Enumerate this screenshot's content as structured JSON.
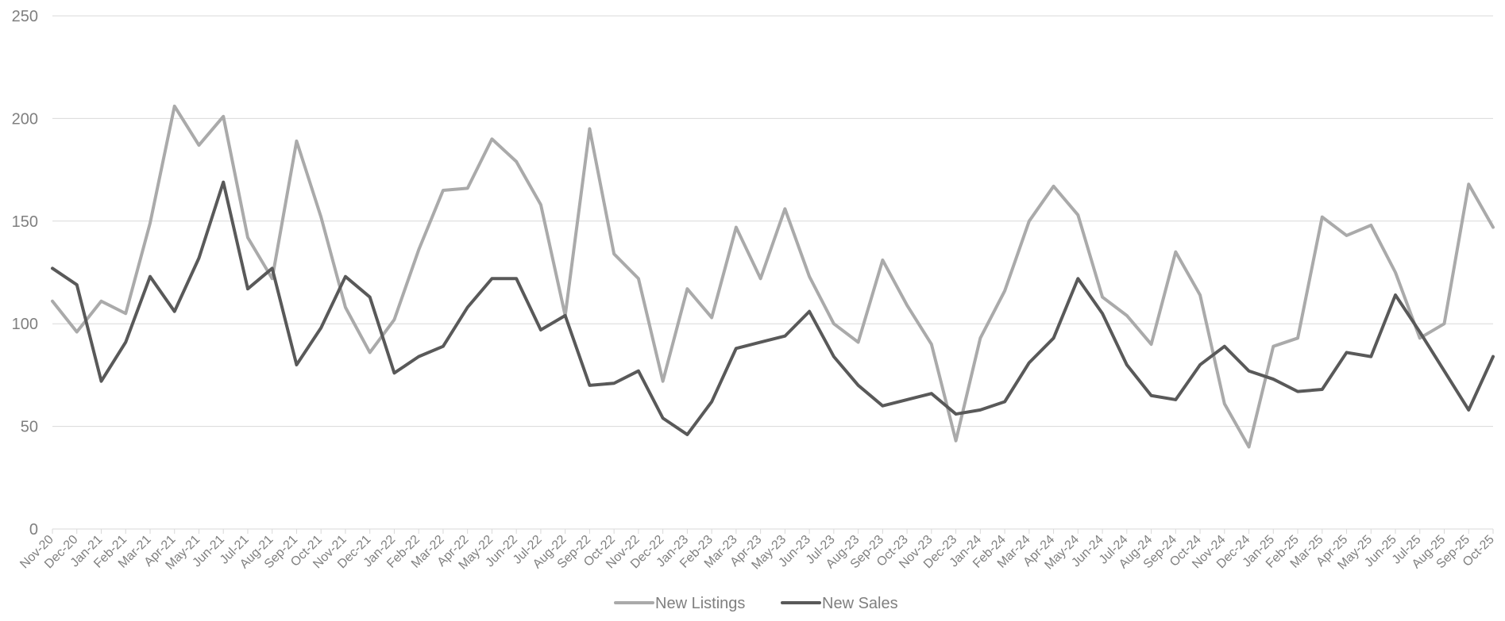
{
  "chart_data": {
    "type": "line",
    "title": "",
    "xlabel": "",
    "ylabel": "",
    "ylim": [
      0,
      250
    ],
    "yticks": [
      0,
      50,
      100,
      150,
      200,
      250
    ],
    "grid": true,
    "legend_position": "bottom",
    "categories": [
      "Nov-20",
      "Dec-20",
      "Jan-21",
      "Feb-21",
      "Mar-21",
      "Apr-21",
      "May-21",
      "Jun-21",
      "Jul-21",
      "Aug-21",
      "Sep-21",
      "Oct-21",
      "Nov-21",
      "Dec-21",
      "Jan-22",
      "Feb-22",
      "Mar-22",
      "Apr-22",
      "May-22",
      "Jun-22",
      "Jul-22",
      "Aug-22",
      "Sep-22",
      "Oct-22",
      "Nov-22",
      "Dec-22",
      "Jan-23",
      "Feb-23",
      "Mar-23",
      "Apr-23",
      "May-23",
      "Jun-23",
      "Jul-23",
      "Aug-23",
      "Sep-23",
      "Oct-23",
      "Nov-23",
      "Dec-23",
      "Jan-24",
      "Feb-24",
      "Mar-24",
      "Apr-24",
      "May-24",
      "Jun-24",
      "Jul-24",
      "Aug-24",
      "Sep-24",
      "Oct-24",
      "Nov-24",
      "Dec-24",
      "Jan-25",
      "Feb-25",
      "Mar-25",
      "Apr-25",
      "May-25",
      "Jun-25",
      "Jul-25",
      "Aug-25",
      "Sep-25",
      "Oct-25"
    ],
    "series": [
      {
        "name": "New Listings",
        "color": "#aaaaaa",
        "values": [
          111,
          96,
          111,
          105,
          149,
          206,
          187,
          201,
          142,
          122,
          189,
          152,
          108,
          86,
          102,
          136,
          165,
          166,
          190,
          179,
          158,
          104,
          195,
          134,
          122,
          72,
          117,
          103,
          147,
          122,
          156,
          123,
          100,
          91,
          131,
          109,
          90,
          43,
          93,
          116,
          150,
          167,
          153,
          113,
          104,
          90,
          135,
          114,
          61,
          40,
          89,
          93,
          152,
          143,
          148,
          125,
          93,
          100,
          168,
          147
        ]
      },
      {
        "name": "New Sales",
        "color": "#595959",
        "values": [
          127,
          119,
          72,
          91,
          123,
          106,
          132,
          169,
          117,
          127,
          80,
          98,
          123,
          113,
          76,
          84,
          89,
          108,
          122,
          122,
          97,
          104,
          70,
          71,
          77,
          54,
          46,
          62,
          88,
          91,
          94,
          106,
          84,
          70,
          60,
          63,
          66,
          56,
          58,
          62,
          81,
          93,
          122,
          105,
          80,
          65,
          63,
          80,
          89,
          77,
          73,
          67,
          68,
          86,
          84,
          114,
          96,
          77,
          58,
          84
        ]
      }
    ]
  }
}
